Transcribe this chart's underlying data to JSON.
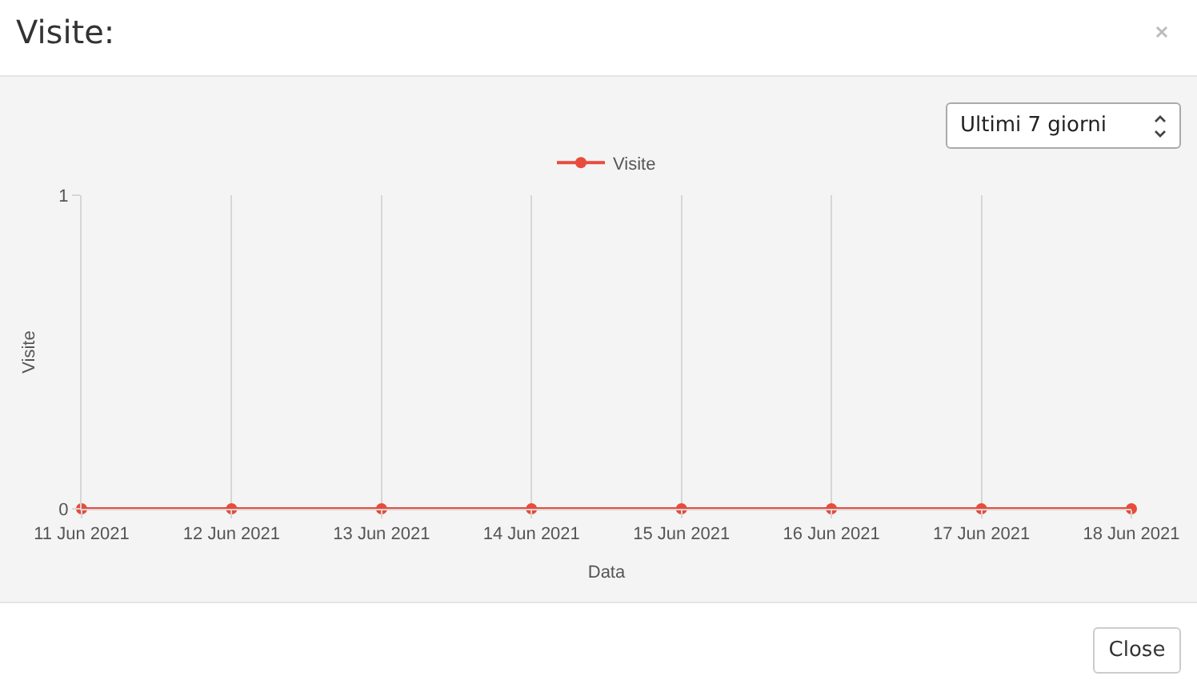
{
  "chart_data": {
    "type": "line",
    "title": "Visite:",
    "xlabel": "Data",
    "ylabel": "Visite",
    "x": [
      "2021-06-11",
      "2021-06-12",
      "2021-06-13",
      "2021-06-14",
      "2021-06-15",
      "2021-06-16",
      "2021-06-17",
      "2021-06-18"
    ],
    "series": [
      {
        "name": "Visite",
        "color": "#e74c3c",
        "values": [
          0,
          0,
          0,
          0,
          0,
          0,
          0,
          0
        ]
      }
    ],
    "xlim": [
      "2021-06-11",
      "2021-06-18"
    ],
    "xticks": [
      {
        "value": "2021-06-11",
        "label": "11 Jun 2021"
      },
      {
        "value": "2021-06-12",
        "label": "12 Jun 2021"
      },
      {
        "value": "2021-06-13",
        "label": "13 Jun 2021"
      },
      {
        "value": "2021-06-14",
        "label": "14 Jun 2021"
      },
      {
        "value": "2021-06-15",
        "label": "15 Jun 2021"
      },
      {
        "value": "2021-06-16",
        "label": "16 Jun 2021"
      },
      {
        "value": "2021-06-17",
        "label": "17 Jun 2021"
      },
      {
        "value": "2021-06-18",
        "label": "18 Jun 2021"
      }
    ],
    "ylim": [
      0,
      1
    ],
    "yticks": [
      0,
      1
    ],
    "grid": true,
    "legend": "top",
    "marker": "circle",
    "line_style": "solid",
    "annotations": [
      "Ultimi 7 giorni",
      "Close"
    ]
  }
}
